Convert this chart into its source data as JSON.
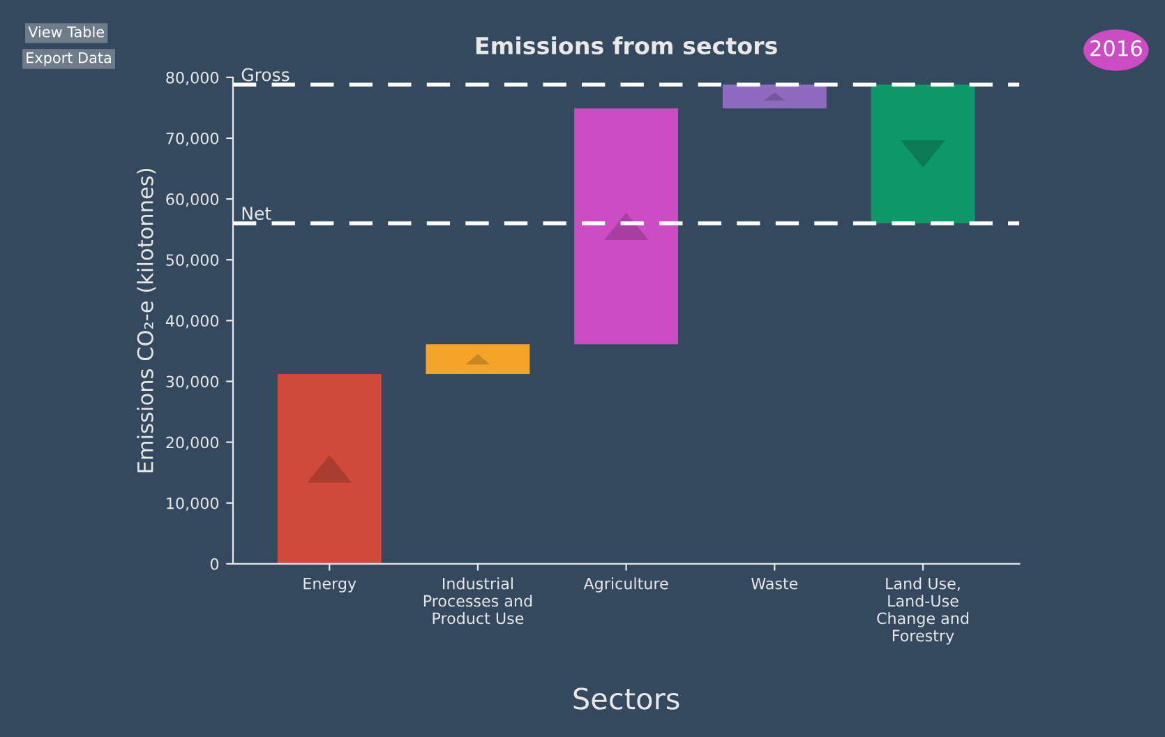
{
  "chart_data": {
    "type": "bar",
    "title": "Emissions from sectors",
    "xlabel": "Sectors",
    "ylabel": "Emissions CO₂-e (kilotonnes)",
    "categories": [
      "Energy",
      "Industrial\nProcesses and\nProduct Use",
      "Agriculture",
      "Waste",
      "Land Use,\nLand-Use\nChange and\nForestry"
    ],
    "base": [
      0,
      31200,
      36100,
      74900,
      78800
    ],
    "values": [
      31200,
      4900,
      38800,
      3900,
      -22800
    ],
    "colors": [
      "#d04a3c",
      "#f5a42a",
      "#cc4cc4",
      "#8e6bbf",
      "#0e9768"
    ],
    "ylim": [
      0,
      80000
    ],
    "yticks": [
      {
        "value": 0,
        "label": "0"
      },
      {
        "value": 10000,
        "label": "10,000"
      },
      {
        "value": 20000,
        "label": "20,000"
      },
      {
        "value": 30000,
        "label": "30,000"
      },
      {
        "value": 40000,
        "label": "40,000"
      },
      {
        "value": 50000,
        "label": "50,000"
      },
      {
        "value": 60000,
        "label": "60,000"
      },
      {
        "value": 70000,
        "label": "70,000"
      },
      {
        "value": 80000,
        "label": "80,000"
      }
    ],
    "ref_lines": [
      {
        "axis": "y",
        "value": 78800,
        "label": "Gross",
        "color": "#ffffff",
        "line_style": "dashed"
      },
      {
        "axis": "y",
        "value": 56000,
        "label": "Net",
        "color": "#ffffff",
        "line_style": "dashed"
      }
    ],
    "annotations": [
      "View Table",
      "Export Data",
      "2016"
    ],
    "grid": false,
    "legend": false
  }
}
